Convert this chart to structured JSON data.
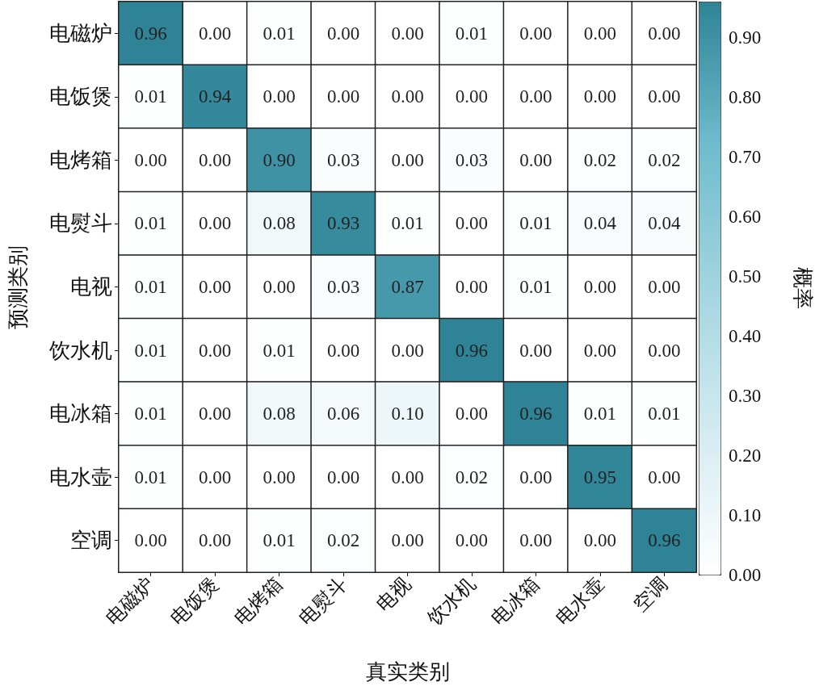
{
  "chart_data": {
    "type": "heatmap",
    "xlabel": "真实类别",
    "ylabel": "预测类别",
    "clabel": "概率",
    "categories": [
      "电磁炉",
      "电饭煲",
      "电烤箱",
      "电熨斗",
      "电视",
      "饮水机",
      "电冰箱",
      "电水壶",
      "空调"
    ],
    "y_categories": [
      "电磁炉",
      "电饭煲",
      "电烤箱",
      "电熨斗",
      "电视",
      "饮水机",
      "电冰箱",
      "电水壶",
      "空调"
    ],
    "cells": [
      [
        0.96,
        0,
        0.01,
        0,
        0,
        0.01,
        0,
        0,
        0
      ],
      [
        0.01,
        0.94,
        0,
        0,
        0,
        0,
        0,
        0,
        0
      ],
      [
        0,
        0,
        0.9,
        0.03,
        0,
        0.03,
        0,
        0.02,
        0.02
      ],
      [
        0.01,
        0,
        0.08,
        0.93,
        0.01,
        0,
        0.01,
        0.04,
        0.04
      ],
      [
        0.01,
        0,
        0,
        0.03,
        0.87,
        0,
        0.01,
        0,
        0
      ],
      [
        0.01,
        0,
        0.01,
        0,
        0,
        0.96,
        0,
        0,
        0
      ],
      [
        0.01,
        0,
        0.08,
        0.06,
        0.1,
        0,
        0.96,
        0.01,
        0.01
      ],
      [
        0.01,
        0,
        0,
        0,
        0,
        0.02,
        0,
        0.95,
        0
      ],
      [
        0,
        0,
        0.01,
        0.02,
        0,
        0,
        0,
        0,
        0.96
      ]
    ],
    "cell_labels": [
      [
        "0.96",
        "0.00",
        "0.01",
        "0.00",
        "0.00",
        "0.01",
        "0.00",
        "0.00",
        "0.00"
      ],
      [
        "0.01",
        "0.94",
        "0.00",
        "0.00",
        "0.00",
        "0.00",
        "0.00",
        "0.00",
        "0.00"
      ],
      [
        "0.00",
        "0.00",
        "0.90",
        "0.03",
        "0.00",
        "0.03",
        "0.00",
        "0.02",
        "0.02"
      ],
      [
        "0.01",
        "0.00",
        "0.08",
        "0.93",
        "0.01",
        "0.00",
        "0.01",
        "0.04",
        "0.04"
      ],
      [
        "0.01",
        "0.00",
        "0.00",
        "0.03",
        "0.87",
        "0.00",
        "0.01",
        "0.00",
        "0.00"
      ],
      [
        "0.01",
        "0.00",
        "0.01",
        "0.00",
        "0.00",
        "0.96",
        "0.00",
        "0.00",
        "0.00"
      ],
      [
        "0.01",
        "0.00",
        "0.08",
        "0.06",
        "0.10",
        "0.00",
        "0.96",
        "0.01",
        "0.01"
      ],
      [
        "0.01",
        "0.00",
        "0.00",
        "0.00",
        "0.00",
        "0.02",
        "0.00",
        "0.95",
        "0.00"
      ],
      [
        "0.00",
        "0.00",
        "0.01",
        "0.02",
        "0.00",
        "0.00",
        "0.00",
        "0.00",
        "0.96"
      ]
    ],
    "clim": [
      0,
      0.96
    ],
    "cticks": [
      {
        "value": 0,
        "label": "0.00"
      },
      {
        "value": 0.1,
        "label": "0.10"
      },
      {
        "value": 0.2,
        "label": "0.20"
      },
      {
        "value": 0.3,
        "label": "0.30"
      },
      {
        "value": 0.4,
        "label": "0.40"
      },
      {
        "value": 0.5,
        "label": "0.50"
      },
      {
        "value": 0.6,
        "label": "0.60"
      },
      {
        "value": 0.7,
        "label": "0.70"
      },
      {
        "value": 0.8,
        "label": "0.80"
      },
      {
        "value": 0.9,
        "label": "0.90"
      }
    ],
    "colors": [
      "#ffffff",
      "#d3ebf1",
      "#a3d5e0",
      "#6fbccd",
      "#2e8496"
    ]
  }
}
